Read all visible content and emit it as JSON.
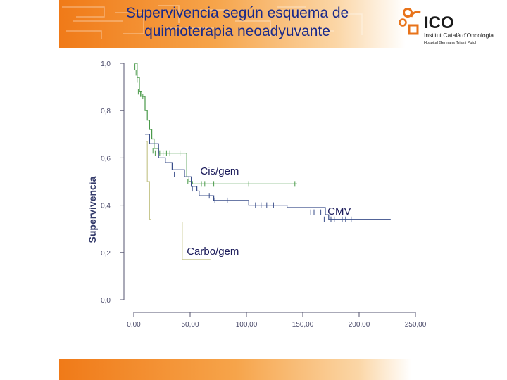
{
  "slide": {
    "title_line1": "Supervivencia según esquema de",
    "title_line2": "quimioterapia neoadyuvante"
  },
  "logo": {
    "name": "ICO",
    "line1": "Institut Català d'Oncologia",
    "line2": "Hospital Germans Trias i Pujol"
  },
  "colors": {
    "accent_orange": "#f07a18",
    "title_blue": "#1a2a8a",
    "series_green": "#4a9a4a",
    "series_navy": "#3a4e8a",
    "series_khaki": "#c8c890"
  },
  "chart_data": {
    "type": "line",
    "step": true,
    "ylabel": "Supervivencia",
    "xlabel": "",
    "xlim": [
      0,
      250
    ],
    "ylim": [
      0,
      1
    ],
    "x_ticks": [
      "0,00",
      "50,00",
      "100,00",
      "150,00",
      "200,00",
      "250,00"
    ],
    "y_ticks": [
      "0,0",
      "0,2",
      "0,4",
      "0,6",
      "0,8",
      "1,0"
    ],
    "grid": false,
    "series": [
      {
        "name": "Cis/gem",
        "color": "#4a9a4a",
        "steps": [
          [
            0,
            1.0
          ],
          [
            3,
            0.94
          ],
          [
            5,
            0.88
          ],
          [
            7,
            0.86
          ],
          [
            10,
            0.8
          ],
          [
            12,
            0.76
          ],
          [
            14,
            0.72
          ],
          [
            16,
            0.68
          ],
          [
            18,
            0.64
          ],
          [
            22,
            0.62
          ],
          [
            44,
            0.62
          ],
          [
            47,
            0.52
          ],
          [
            49,
            0.5
          ],
          [
            52,
            0.49
          ],
          [
            145,
            0.49
          ]
        ],
        "censored": [
          [
            1,
            0.985
          ],
          [
            2,
            0.96
          ],
          [
            3,
            0.93
          ],
          [
            4,
            0.88
          ],
          [
            6,
            0.87
          ],
          [
            8,
            0.86
          ],
          [
            17,
            0.63
          ],
          [
            19,
            0.62
          ],
          [
            23,
            0.62
          ],
          [
            26,
            0.62
          ],
          [
            29,
            0.62
          ],
          [
            32,
            0.62
          ],
          [
            41,
            0.62
          ],
          [
            48,
            0.5
          ],
          [
            51,
            0.49
          ],
          [
            60,
            0.49
          ],
          [
            63,
            0.49
          ],
          [
            71,
            0.49
          ],
          [
            102,
            0.49
          ],
          [
            143,
            0.49
          ]
        ]
      },
      {
        "name": "CMV",
        "color": "#3a4e8a",
        "steps": [
          [
            10,
            0.7
          ],
          [
            14,
            0.66
          ],
          [
            22,
            0.6
          ],
          [
            28,
            0.58
          ],
          [
            34,
            0.55
          ],
          [
            41,
            0.55
          ],
          [
            45,
            0.52
          ],
          [
            51,
            0.48
          ],
          [
            56,
            0.46
          ],
          [
            58,
            0.44
          ],
          [
            65,
            0.44
          ],
          [
            71,
            0.42
          ],
          [
            95,
            0.42
          ],
          [
            102,
            0.4
          ],
          [
            123,
            0.4
          ],
          [
            136,
            0.39
          ],
          [
            155,
            0.39
          ],
          [
            170,
            0.36
          ],
          [
            173,
            0.34
          ],
          [
            228,
            0.34
          ]
        ],
        "censored": [
          [
            36,
            0.53
          ],
          [
            52,
            0.47
          ],
          [
            67,
            0.44
          ],
          [
            72,
            0.42
          ],
          [
            83,
            0.42
          ],
          [
            108,
            0.4
          ],
          [
            113,
            0.4
          ],
          [
            118,
            0.4
          ],
          [
            124,
            0.4
          ],
          [
            157,
            0.37
          ],
          [
            160,
            0.37
          ],
          [
            166,
            0.37
          ],
          [
            169,
            0.34
          ],
          [
            175,
            0.34
          ],
          [
            178,
            0.34
          ],
          [
            185,
            0.34
          ],
          [
            188,
            0.34
          ],
          [
            193,
            0.34
          ]
        ]
      },
      {
        "name": "Carbo/gem",
        "color": "#c8c890",
        "steps": [
          [
            11,
            0.67
          ],
          [
            12,
            0.67
          ],
          [
            12,
            0.5
          ],
          [
            14,
            0.5
          ],
          [
            14,
            0.34
          ],
          [
            15,
            0.34
          ]
        ]
      },
      {
        "name": "",
        "color": "#c8c890",
        "steps": [
          [
            43,
            0.33
          ],
          [
            43,
            0.17
          ],
          [
            68,
            0.17
          ]
        ]
      }
    ],
    "annotations": [
      {
        "text": "Cis/gem",
        "x": 59,
        "y": 0.53
      },
      {
        "text": "CMV",
        "x": 172,
        "y": 0.36
      },
      {
        "text": "Carbo/gem",
        "x": 47,
        "y": 0.19
      }
    ]
  }
}
